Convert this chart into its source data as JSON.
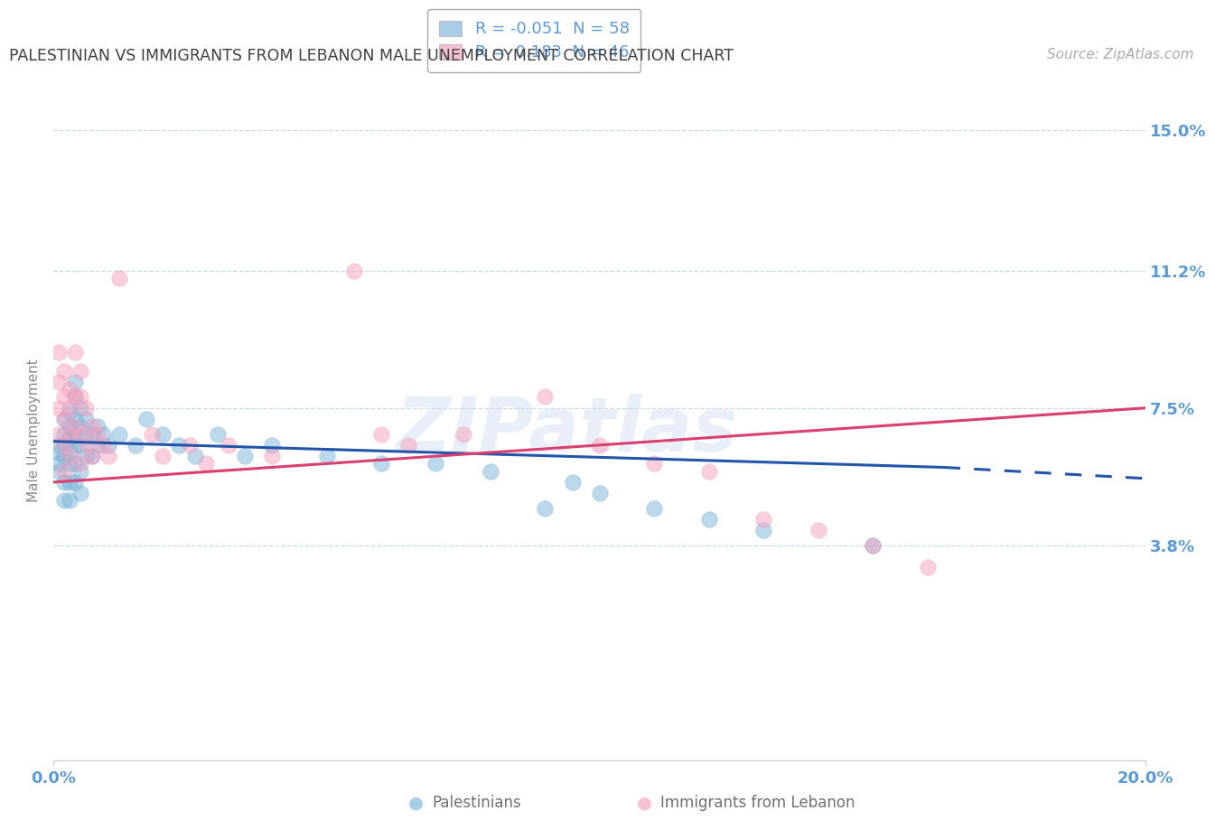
{
  "title": "PALESTINIAN VS IMMIGRANTS FROM LEBANON MALE UNEMPLOYMENT CORRELATION CHART",
  "source_text": "Source: ZipAtlas.com",
  "ylabel": "Male Unemployment",
  "watermark": "ZIPatlas",
  "xmin": 0.0,
  "xmax": 0.2,
  "ymin": -0.02,
  "ymax": 0.158,
  "yticks": [
    0.038,
    0.075,
    0.112,
    0.15
  ],
  "ytick_labels": [
    "3.8%",
    "7.5%",
    "11.2%",
    "15.0%"
  ],
  "xticks": [
    0.0,
    0.2
  ],
  "xtick_labels": [
    "0.0%",
    "20.0%"
  ],
  "blue_color": "#7ab3d9",
  "pink_color": "#f4a0bf",
  "trend_blue_color": "#2255aa",
  "trend_pink_color": "#d94070",
  "background_color": "#ffffff",
  "grid_color": "#c8d4e8",
  "title_color": "#404040",
  "axis_tick_color": "#5b9bd5",
  "legend_R_blue": "-0.051",
  "legend_N_blue": "58",
  "legend_R_pink": "0.183",
  "legend_N_pink": "46",
  "legend_label_blue": "Palestinians",
  "legend_label_pink": "Immigrants from Lebanon",
  "scatter_blue": [
    [
      0.001,
      0.065
    ],
    [
      0.001,
      0.063
    ],
    [
      0.001,
      0.06
    ],
    [
      0.001,
      0.058
    ],
    [
      0.002,
      0.072
    ],
    [
      0.002,
      0.068
    ],
    [
      0.002,
      0.065
    ],
    [
      0.002,
      0.062
    ],
    [
      0.002,
      0.055
    ],
    [
      0.002,
      0.05
    ],
    [
      0.003,
      0.074
    ],
    [
      0.003,
      0.07
    ],
    [
      0.003,
      0.067
    ],
    [
      0.003,
      0.063
    ],
    [
      0.003,
      0.06
    ],
    [
      0.003,
      0.055
    ],
    [
      0.003,
      0.05
    ],
    [
      0.004,
      0.082
    ],
    [
      0.004,
      0.078
    ],
    [
      0.004,
      0.072
    ],
    [
      0.004,
      0.068
    ],
    [
      0.004,
      0.065
    ],
    [
      0.004,
      0.06
    ],
    [
      0.004,
      0.055
    ],
    [
      0.005,
      0.075
    ],
    [
      0.005,
      0.07
    ],
    [
      0.005,
      0.065
    ],
    [
      0.005,
      0.058
    ],
    [
      0.005,
      0.052
    ],
    [
      0.006,
      0.072
    ],
    [
      0.006,
      0.068
    ],
    [
      0.006,
      0.062
    ],
    [
      0.007,
      0.068
    ],
    [
      0.007,
      0.062
    ],
    [
      0.008,
      0.07
    ],
    [
      0.008,
      0.065
    ],
    [
      0.009,
      0.068
    ],
    [
      0.01,
      0.065
    ],
    [
      0.012,
      0.068
    ],
    [
      0.015,
      0.065
    ],
    [
      0.017,
      0.072
    ],
    [
      0.02,
      0.068
    ],
    [
      0.023,
      0.065
    ],
    [
      0.026,
      0.062
    ],
    [
      0.03,
      0.068
    ],
    [
      0.035,
      0.062
    ],
    [
      0.04,
      0.065
    ],
    [
      0.05,
      0.062
    ],
    [
      0.06,
      0.06
    ],
    [
      0.07,
      0.06
    ],
    [
      0.08,
      0.058
    ],
    [
      0.09,
      0.048
    ],
    [
      0.095,
      0.055
    ],
    [
      0.1,
      0.052
    ],
    [
      0.11,
      0.048
    ],
    [
      0.12,
      0.045
    ],
    [
      0.13,
      0.042
    ],
    [
      0.15,
      0.038
    ]
  ],
  "scatter_pink": [
    [
      0.001,
      0.09
    ],
    [
      0.001,
      0.082
    ],
    [
      0.001,
      0.075
    ],
    [
      0.001,
      0.068
    ],
    [
      0.002,
      0.085
    ],
    [
      0.002,
      0.078
    ],
    [
      0.002,
      0.072
    ],
    [
      0.002,
      0.065
    ],
    [
      0.002,
      0.058
    ],
    [
      0.003,
      0.08
    ],
    [
      0.003,
      0.075
    ],
    [
      0.003,
      0.068
    ],
    [
      0.003,
      0.062
    ],
    [
      0.004,
      0.09
    ],
    [
      0.004,
      0.078
    ],
    [
      0.004,
      0.07
    ],
    [
      0.005,
      0.085
    ],
    [
      0.005,
      0.078
    ],
    [
      0.005,
      0.068
    ],
    [
      0.005,
      0.06
    ],
    [
      0.006,
      0.075
    ],
    [
      0.006,
      0.065
    ],
    [
      0.007,
      0.07
    ],
    [
      0.007,
      0.062
    ],
    [
      0.008,
      0.068
    ],
    [
      0.009,
      0.065
    ],
    [
      0.01,
      0.062
    ],
    [
      0.012,
      0.11
    ],
    [
      0.018,
      0.068
    ],
    [
      0.02,
      0.062
    ],
    [
      0.025,
      0.065
    ],
    [
      0.028,
      0.06
    ],
    [
      0.032,
      0.065
    ],
    [
      0.04,
      0.062
    ],
    [
      0.055,
      0.112
    ],
    [
      0.06,
      0.068
    ],
    [
      0.065,
      0.065
    ],
    [
      0.075,
      0.068
    ],
    [
      0.09,
      0.078
    ],
    [
      0.1,
      0.065
    ],
    [
      0.11,
      0.06
    ],
    [
      0.12,
      0.058
    ],
    [
      0.13,
      0.045
    ],
    [
      0.14,
      0.042
    ],
    [
      0.15,
      0.038
    ],
    [
      0.16,
      0.032
    ]
  ],
  "trend_blue_x0": 0.0,
  "trend_blue_y0": 0.066,
  "trend_blue_x1": 0.163,
  "trend_blue_y1": 0.059,
  "trend_blue_dash_x1": 0.2,
  "trend_blue_dash_y1": 0.056,
  "trend_pink_x0": 0.0,
  "trend_pink_y0": 0.055,
  "trend_pink_x1": 0.2,
  "trend_pink_y1": 0.075
}
